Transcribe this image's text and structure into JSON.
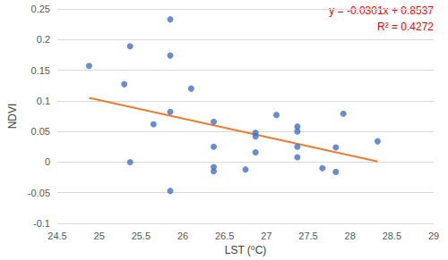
{
  "chart_data": {
    "type": "scatter",
    "x_label": "LST (⁰C)",
    "y_label": "NDVI",
    "xlim": [
      24.5,
      29
    ],
    "xticks": [
      24.5,
      25,
      25.5,
      26,
      26.5,
      27,
      27.5,
      28,
      28.5,
      29
    ],
    "ylim": [
      -0.1,
      0.25
    ],
    "yticks": [
      -0.1,
      -0.05,
      0,
      0.05,
      0.1,
      0.15,
      0.2,
      0.25
    ],
    "grid": true,
    "series": [
      {
        "type": "scatter",
        "color": "#4472c4",
        "marker": "circle",
        "x": [
          24.88,
          25.3,
          25.37,
          25.37,
          25.65,
          25.85,
          25.85,
          25.85,
          25.85,
          26.1,
          26.37,
          26.37,
          26.37,
          26.37,
          26.75,
          26.87,
          26.87,
          26.87,
          27.12,
          27.37,
          27.37,
          27.37,
          27.37,
          27.67,
          27.83,
          27.83,
          27.92,
          28.33
        ],
        "values": [
          0.157,
          0.127,
          0.189,
          0.0,
          0.062,
          0.233,
          0.174,
          0.082,
          -0.047,
          0.12,
          0.066,
          0.025,
          -0.008,
          -0.015,
          -0.012,
          0.048,
          0.042,
          0.016,
          0.077,
          0.058,
          0.05,
          0.025,
          0.008,
          -0.01,
          0.024,
          -0.016,
          0.079,
          0.034
        ]
      },
      {
        "type": "line",
        "color": "#ed7d31",
        "line_style": "solid",
        "x": [
          24.88,
          28.33
        ],
        "values": [
          0.1048,
          0.001
        ]
      }
    ],
    "annotations": [
      {
        "text": "y = -0.0301x + 0.8537",
        "color": "#ff0000"
      },
      {
        "text": "R² = 0.4272",
        "color": "#ff0000"
      }
    ]
  }
}
